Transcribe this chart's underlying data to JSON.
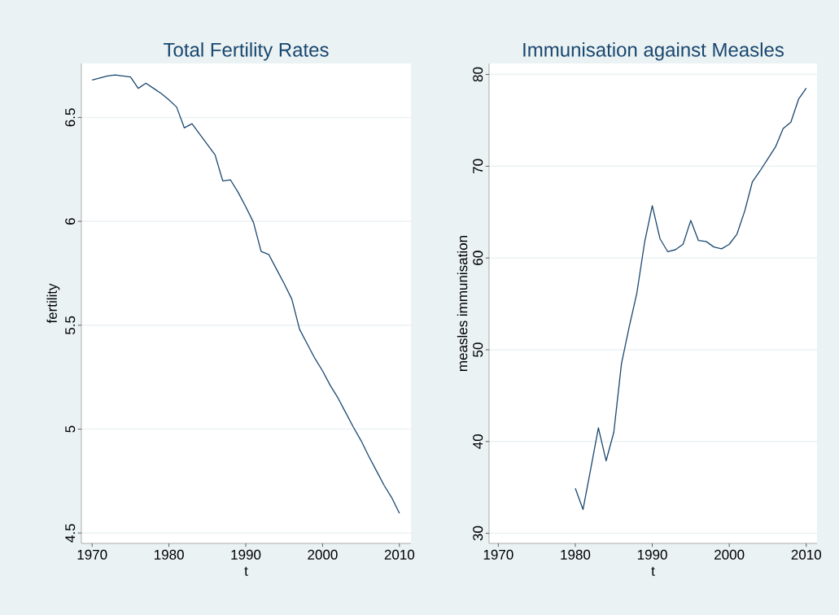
{
  "chart_data": [
    {
      "type": "line",
      "title": "Total Fertility Rates",
      "xlabel": "t",
      "ylabel": "fertility",
      "color": "#1a476f",
      "x": [
        1970,
        1971,
        1972,
        1973,
        1974,
        1975,
        1976,
        1977,
        1978,
        1979,
        1980,
        1981,
        1982,
        1983,
        1984,
        1985,
        1986,
        1987,
        1988,
        1989,
        1990,
        1991,
        1992,
        1993,
        1994,
        1995,
        1996,
        1997,
        1998,
        1999,
        2000,
        2001,
        2002,
        2003,
        2004,
        2005,
        2006,
        2007,
        2008,
        2009,
        2010
      ],
      "values": [
        6.68,
        6.69,
        6.7,
        6.705,
        6.7,
        6.695,
        6.64,
        6.665,
        6.64,
        6.615,
        6.585,
        6.55,
        6.45,
        6.47,
        6.42,
        6.37,
        6.32,
        6.195,
        6.2,
        6.14,
        6.07,
        5.995,
        5.855,
        5.84,
        5.77,
        5.7,
        5.625,
        5.48,
        5.41,
        5.34,
        5.28,
        5.21,
        5.15,
        5.08,
        5.01,
        4.945,
        4.87,
        4.8,
        4.73,
        4.67,
        4.595
      ],
      "xlim": [
        1968.6,
        2011.5
      ],
      "ylim": [
        4.45,
        6.76
      ],
      "xticks": [
        1970,
        1980,
        1990,
        2000,
        2010
      ],
      "yticks": [
        4.5,
        5,
        5.5,
        6,
        6.5
      ],
      "grid": "y"
    },
    {
      "type": "line",
      "title": "Immunisation against Measles",
      "xlabel": "t",
      "ylabel": "measles immunisation",
      "color": "#1a476f",
      "x": [
        1980,
        1981,
        1982,
        1983,
        1984,
        1985,
        1986,
        1987,
        1988,
        1989,
        1990,
        1991,
        1992,
        1993,
        1994,
        1995,
        1996,
        1997,
        1998,
        1999,
        2000,
        2001,
        2002,
        2003,
        2004,
        2005,
        2006,
        2007,
        2008,
        2009,
        2010
      ],
      "values": [
        34.9,
        32.6,
        37.0,
        41.5,
        37.9,
        41.0,
        48.5,
        52.5,
        56.2,
        61.7,
        65.7,
        62.1,
        60.7,
        60.9,
        61.5,
        64.1,
        61.9,
        61.8,
        61.2,
        61.0,
        61.5,
        62.6,
        65.1,
        68.3,
        69.5,
        70.8,
        72.1,
        74.1,
        74.8,
        77.3,
        78.5
      ],
      "xlim": [
        1968.8,
        2011.4
      ],
      "ylim": [
        28.9,
        81.2
      ],
      "xticks": [
        1970,
        1980,
        1990,
        2000,
        2010
      ],
      "yticks": [
        30,
        40,
        50,
        60,
        70,
        80
      ],
      "grid": "y"
    }
  ]
}
